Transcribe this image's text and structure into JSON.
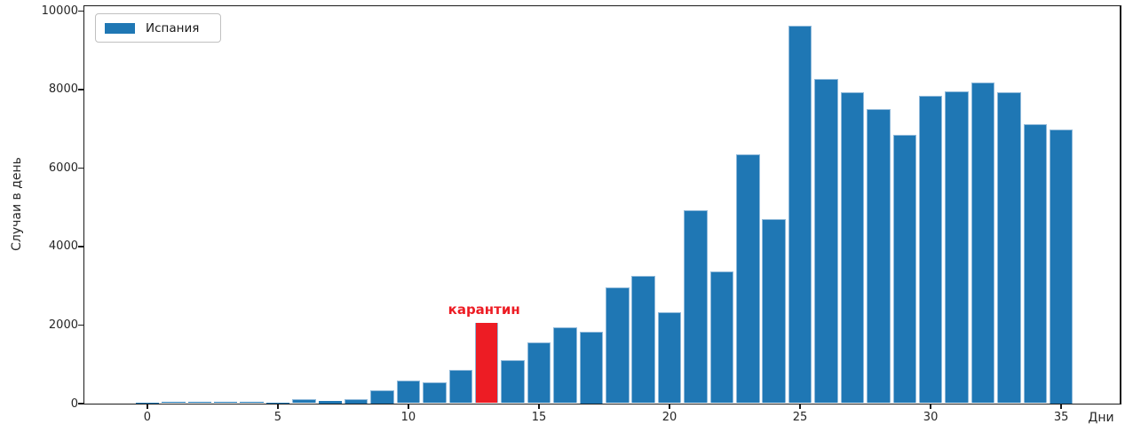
{
  "chart_data": {
    "type": "bar",
    "title": "",
    "xlabel": "Дни",
    "ylabel": "Случаи в день",
    "legend": [
      {
        "label": "Испания",
        "color": "#1f77b4"
      }
    ],
    "legend_position": "upper-left",
    "x": [
      0,
      1,
      2,
      3,
      4,
      5,
      6,
      7,
      8,
      9,
      10,
      11,
      12,
      13,
      14,
      15,
      16,
      17,
      18,
      19,
      20,
      21,
      22,
      23,
      24,
      25,
      26,
      27,
      28,
      29,
      30,
      31,
      32,
      33,
      34,
      35
    ],
    "values": [
      25,
      40,
      40,
      40,
      40,
      35,
      120,
      80,
      125,
      350,
      580,
      540,
      850,
      2050,
      1100,
      1550,
      1940,
      1840,
      2950,
      3250,
      2320,
      4920,
      3360,
      6350,
      4700,
      9620,
      8270,
      7920,
      7490,
      6850,
      7840,
      7960,
      8170,
      7930,
      7110,
      6980
    ],
    "bar_color": "#1f77b4",
    "bar_edge_color": "#8fb9da",
    "highlight": {
      "day": 13,
      "value": 2050,
      "color": "#ed1c24"
    },
    "annotation": {
      "text": "карантин",
      "color": "#ed1c24",
      "day": 13
    },
    "xticks": [
      0,
      5,
      10,
      15,
      20,
      25,
      30,
      35
    ],
    "yticks": [
      0,
      2000,
      4000,
      6000,
      8000,
      10000
    ],
    "xlim": [
      -2.41,
      37.24
    ],
    "ylim": [
      0,
      10120
    ],
    "bar_width_fraction": 0.9,
    "highlight_width_fraction": 0.8,
    "grid": false
  },
  "colors": {
    "spine": "#1a1a1a",
    "tick_label": "#262626",
    "background": "#ffffff"
  }
}
